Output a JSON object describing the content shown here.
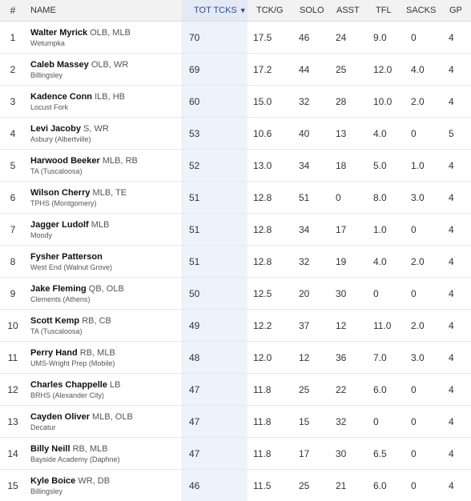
{
  "columns": {
    "rank": "#",
    "name": "NAME",
    "tot": "TOT TCKS",
    "tckg": "TCK/G",
    "solo": "SOLO",
    "asst": "ASST",
    "tfl": "TFL",
    "sacks": "SACKS",
    "gp": "GP",
    "sort_icon": "▼"
  },
  "rows": [
    {
      "rank": "1",
      "name": "Walter Myrick",
      "pos": "OLB, MLB",
      "school": "Wetumpka",
      "tot": "70",
      "tckg": "17.5",
      "solo": "46",
      "asst": "24",
      "tfl": "9.0",
      "sacks": "0",
      "gp": "4"
    },
    {
      "rank": "2",
      "name": "Caleb Massey",
      "pos": "OLB, WR",
      "school": "Billingsley",
      "tot": "69",
      "tckg": "17.2",
      "solo": "44",
      "asst": "25",
      "tfl": "12.0",
      "sacks": "4.0",
      "gp": "4"
    },
    {
      "rank": "3",
      "name": "Kadence Conn",
      "pos": "ILB, HB",
      "school": "Locust Fork",
      "tot": "60",
      "tckg": "15.0",
      "solo": "32",
      "asst": "28",
      "tfl": "10.0",
      "sacks": "2.0",
      "gp": "4"
    },
    {
      "rank": "4",
      "name": "Levi Jacoby",
      "pos": "S, WR",
      "school": "Asbury (Albertville)",
      "tot": "53",
      "tckg": "10.6",
      "solo": "40",
      "asst": "13",
      "tfl": "4.0",
      "sacks": "0",
      "gp": "5"
    },
    {
      "rank": "5",
      "name": "Harwood Beeker",
      "pos": "MLB, RB",
      "school": "TA (Tuscaloosa)",
      "tot": "52",
      "tckg": "13.0",
      "solo": "34",
      "asst": "18",
      "tfl": "5.0",
      "sacks": "1.0",
      "gp": "4"
    },
    {
      "rank": "6",
      "name": "Wilson Cherry",
      "pos": "MLB, TE",
      "school": "TPHS (Montgomery)",
      "tot": "51",
      "tckg": "12.8",
      "solo": "51",
      "asst": "0",
      "tfl": "8.0",
      "sacks": "3.0",
      "gp": "4"
    },
    {
      "rank": "7",
      "name": "Jagger Ludolf",
      "pos": "MLB",
      "school": "Moody",
      "tot": "51",
      "tckg": "12.8",
      "solo": "34",
      "asst": "17",
      "tfl": "1.0",
      "sacks": "0",
      "gp": "4"
    },
    {
      "rank": "8",
      "name": "Fysher Patterson",
      "pos": "",
      "school": "West End (Walnut Grove)",
      "tot": "51",
      "tckg": "12.8",
      "solo": "32",
      "asst": "19",
      "tfl": "4.0",
      "sacks": "2.0",
      "gp": "4"
    },
    {
      "rank": "9",
      "name": "Jake Fleming",
      "pos": "QB, OLB",
      "school": "Clements (Athens)",
      "tot": "50",
      "tckg": "12.5",
      "solo": "20",
      "asst": "30",
      "tfl": "0",
      "sacks": "0",
      "gp": "4"
    },
    {
      "rank": "10",
      "name": "Scott Kemp",
      "pos": "RB, CB",
      "school": "TA (Tuscaloosa)",
      "tot": "49",
      "tckg": "12.2",
      "solo": "37",
      "asst": "12",
      "tfl": "11.0",
      "sacks": "2.0",
      "gp": "4"
    },
    {
      "rank": "11",
      "name": "Perry Hand",
      "pos": "RB, MLB",
      "school": "UMS-Wright Prep (Mobile)",
      "tot": "48",
      "tckg": "12.0",
      "solo": "12",
      "asst": "36",
      "tfl": "7.0",
      "sacks": "3.0",
      "gp": "4"
    },
    {
      "rank": "12",
      "name": "Charles Chappelle",
      "pos": "LB",
      "school": "BRHS (Alexander City)",
      "tot": "47",
      "tckg": "11.8",
      "solo": "25",
      "asst": "22",
      "tfl": "6.0",
      "sacks": "0",
      "gp": "4"
    },
    {
      "rank": "13",
      "name": "Cayden Oliver",
      "pos": "MLB, OLB",
      "school": "Decatur",
      "tot": "47",
      "tckg": "11.8",
      "solo": "15",
      "asst": "32",
      "tfl": "0",
      "sacks": "0",
      "gp": "4"
    },
    {
      "rank": "14",
      "name": "Billy Neill",
      "pos": "RB, MLB",
      "school": "Bayside Academy (Daphne)",
      "tot": "47",
      "tckg": "11.8",
      "solo": "17",
      "asst": "30",
      "tfl": "6.5",
      "sacks": "0",
      "gp": "4"
    },
    {
      "rank": "15",
      "name": "Kyle Boice",
      "pos": "WR, DB",
      "school": "Billingsley",
      "tot": "46",
      "tckg": "11.5",
      "solo": "25",
      "asst": "21",
      "tfl": "6.0",
      "sacks": "0",
      "gp": "4"
    }
  ],
  "colors": {
    "header_bg": "#f2f2f2",
    "sorted_col_bg": "#eef3fb",
    "sorted_header_bg": "#e3eaf5",
    "sorted_header_text": "#2b4f8f"
  }
}
